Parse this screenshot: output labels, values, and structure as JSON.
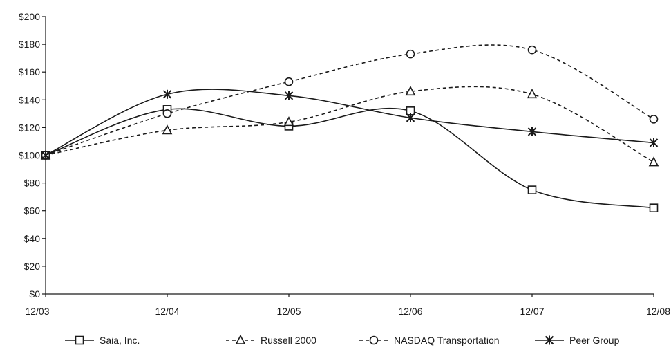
{
  "chart_data": {
    "type": "line",
    "title": "",
    "xlabel": "",
    "ylabel": "",
    "categories": [
      "12/03",
      "12/04",
      "12/05",
      "12/06",
      "12/07",
      "12/08"
    ],
    "y_ticks": [
      "$0",
      "$20",
      "$40",
      "$60",
      "$80",
      "$100",
      "$120",
      "$140",
      "$160",
      "$180",
      "$200"
    ],
    "ylim": [
      0,
      200
    ],
    "y_step": 20,
    "grid": false,
    "smooth": true,
    "legend_position": "bottom",
    "series": [
      {
        "name": "Saia, Inc.",
        "marker": "square",
        "dash": "solid",
        "values": [
          100,
          133,
          121,
          132,
          75,
          62
        ]
      },
      {
        "name": "Russell 2000",
        "marker": "triangle",
        "dash": "dashed",
        "values": [
          100,
          118,
          124,
          146,
          144,
          95
        ]
      },
      {
        "name": "NASDAQ Transportation",
        "marker": "circle",
        "dash": "dashed",
        "values": [
          100,
          130,
          153,
          173,
          176,
          126
        ]
      },
      {
        "name": "Peer Group",
        "marker": "star",
        "dash": "solid",
        "values": [
          100,
          144,
          143,
          127,
          117,
          109
        ]
      }
    ]
  }
}
